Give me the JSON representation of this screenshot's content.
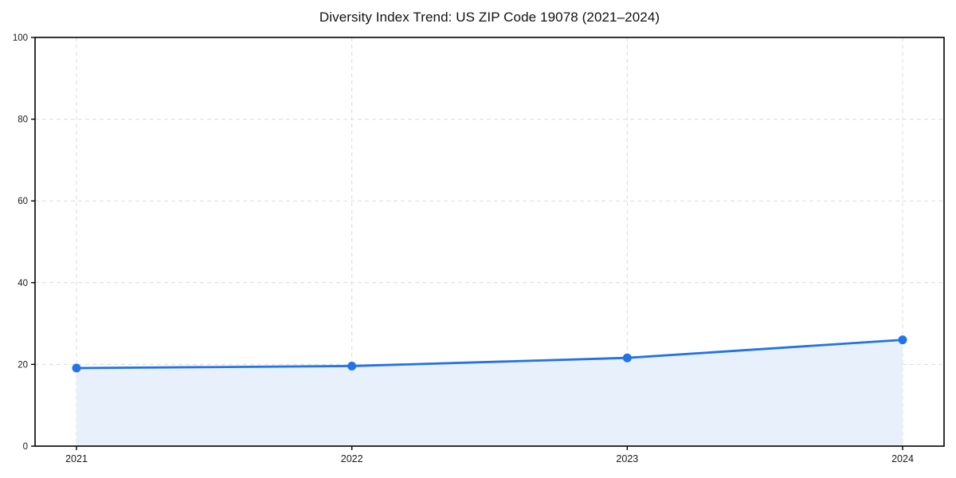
{
  "chart_data": {
    "type": "line",
    "title": "Diversity Index Trend: US ZIP Code 19078 (2021–2024)",
    "x": [
      2021,
      2022,
      2023,
      2024
    ],
    "series": [
      {
        "name": "Diversity Index",
        "values": [
          19.1,
          19.6,
          21.6,
          26.0
        ]
      }
    ],
    "xlabel": "",
    "ylabel": "",
    "ylim": [
      0,
      100
    ],
    "yticks": [
      0,
      20,
      40,
      60,
      80,
      100
    ],
    "grid": {
      "visible": true,
      "style": "dashed",
      "horizontal": true,
      "vertical": true
    },
    "legend_position": "none",
    "area_fill": true,
    "marker": "circle",
    "colors": {
      "line": "#2272e8",
      "marker": "#2272e8",
      "area": "#e8f0fc",
      "grid": "#dcdcdc",
      "axis": "#000000",
      "text": "#1a1a1a",
      "background": "#ffffff"
    }
  }
}
